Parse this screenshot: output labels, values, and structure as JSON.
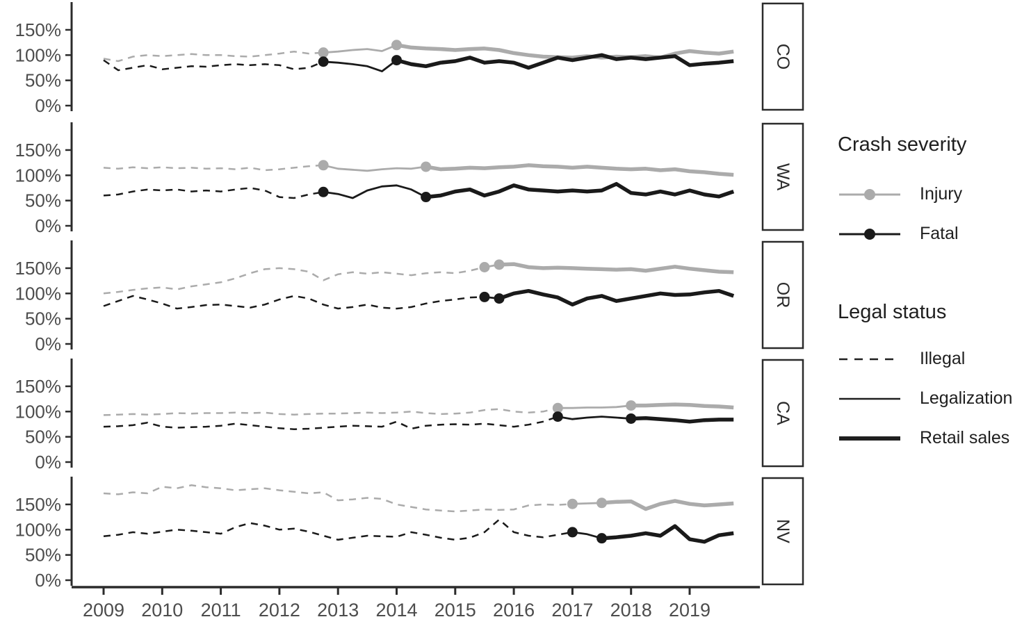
{
  "figure": {
    "background": "#ffffff"
  },
  "legend": {
    "crash_severity": {
      "title": "Crash severity",
      "items": [
        {
          "label": "Injury",
          "color": "#ABABAB",
          "marker": "line-with-dot"
        },
        {
          "label": "Fatal",
          "color": "#1A1A1A",
          "marker": "line-with-dot"
        }
      ]
    },
    "legal_status": {
      "title": "Legal status",
      "items": [
        {
          "label": "Illegal",
          "style": "dashed"
        },
        {
          "label": "Legalization",
          "style": "solid-thin"
        },
        {
          "label": "Retail sales",
          "style": "solid-thick"
        }
      ]
    }
  },
  "chart_data": {
    "type": "line",
    "title": "",
    "xlabel": "",
    "ylabel": "",
    "x_unit": "year, quarterly observations",
    "x_start": 2009,
    "x_step": 0.25,
    "x_ticks": [
      2009,
      2010,
      2011,
      2012,
      2013,
      2014,
      2015,
      2016,
      2017,
      2018,
      2019
    ],
    "x_tick_labels": [
      "2009",
      "2010",
      "2011",
      "2012",
      "2013",
      "2014",
      "2015",
      "2016",
      "2017",
      "2018",
      "2019"
    ],
    "y_tick_values": [
      0,
      50,
      100,
      150
    ],
    "y_tick_labels": [
      "0%",
      "50%",
      "100%",
      "150%"
    ],
    "ylim": [
      -12,
      206
    ],
    "xlim": [
      2008.45,
      2020.2
    ],
    "grid": false,
    "legend_position": "right",
    "series_colors": {
      "injury": "#ABABAB",
      "fatal": "#1A1A1A"
    },
    "axis_color": "#2b2b2b",
    "tick_label_color": "#4d4d4d",
    "panels": [
      {
        "label": "CO",
        "transitions": {
          "legalization": 2012.75,
          "retail_sales": 2014.0
        },
        "injury": [
          93,
          88,
          97,
          100,
          98,
          100,
          102,
          100,
          100,
          98,
          97,
          100,
          103,
          107,
          103,
          105,
          107,
          110,
          112,
          108,
          120,
          115,
          113,
          112,
          110,
          112,
          113,
          110,
          104,
          100,
          97,
          96,
          95,
          98,
          95,
          97,
          96,
          98,
          95,
          103,
          108,
          105,
          103,
          107
        ],
        "fatal": [
          90,
          70,
          75,
          80,
          72,
          75,
          78,
          77,
          80,
          82,
          80,
          82,
          80,
          72,
          75,
          87,
          85,
          82,
          78,
          68,
          90,
          82,
          78,
          85,
          88,
          95,
          85,
          88,
          85,
          75,
          85,
          95,
          90,
          95,
          100,
          92,
          95,
          92,
          95,
          98,
          80,
          83,
          85,
          88
        ]
      },
      {
        "label": "WA",
        "transitions": {
          "legalization": 2012.75,
          "retail_sales": 2014.5
        },
        "injury": [
          115,
          113,
          116,
          114,
          116,
          114,
          115,
          113,
          114,
          112,
          115,
          110,
          112,
          115,
          118,
          120,
          113,
          111,
          109,
          112,
          114,
          113,
          117,
          112,
          113,
          115,
          114,
          116,
          117,
          120,
          118,
          117,
          115,
          117,
          115,
          113,
          112,
          113,
          110,
          112,
          108,
          106,
          103,
          101
        ],
        "fatal": [
          60,
          62,
          68,
          72,
          70,
          72,
          68,
          70,
          68,
          72,
          75,
          70,
          57,
          55,
          62,
          67,
          63,
          55,
          70,
          78,
          80,
          72,
          57,
          60,
          68,
          72,
          60,
          68,
          80,
          72,
          70,
          68,
          70,
          68,
          70,
          83,
          65,
          62,
          68,
          62,
          70,
          62,
          58,
          68
        ]
      },
      {
        "label": "OR",
        "transitions": {
          "legalization": 2015.5,
          "retail_sales": 2015.75
        },
        "injury": [
          100,
          103,
          107,
          110,
          112,
          108,
          114,
          118,
          122,
          130,
          140,
          148,
          150,
          148,
          143,
          126,
          138,
          142,
          139,
          142,
          139,
          136,
          140,
          142,
          140,
          145,
          152,
          157,
          158,
          152,
          150,
          151,
          150,
          149,
          148,
          147,
          148,
          145,
          149,
          153,
          149,
          146,
          143,
          142
        ],
        "fatal": [
          75,
          85,
          95,
          88,
          80,
          70,
          73,
          77,
          78,
          75,
          72,
          78,
          88,
          95,
          90,
          78,
          70,
          73,
          78,
          72,
          70,
          73,
          80,
          85,
          88,
          92,
          93,
          90,
          100,
          105,
          98,
          92,
          78,
          90,
          95,
          85,
          90,
          95,
          100,
          97,
          98,
          102,
          105,
          95
        ]
      },
      {
        "label": "CA",
        "transitions": {
          "legalization": 2016.75,
          "retail_sales": 2018.0
        },
        "injury": [
          93,
          94,
          95,
          94,
          95,
          97,
          96,
          97,
          97,
          98,
          97,
          98,
          95,
          94,
          95,
          96,
          96,
          97,
          98,
          97,
          98,
          100,
          97,
          95,
          96,
          98,
          103,
          105,
          100,
          98,
          100,
          107,
          107,
          108,
          108,
          109,
          112,
          112,
          113,
          114,
          113,
          111,
          110,
          108
        ],
        "fatal": [
          70,
          71,
          73,
          78,
          70,
          68,
          69,
          70,
          72,
          76,
          73,
          70,
          67,
          65,
          66,
          68,
          70,
          72,
          71,
          70,
          80,
          66,
          72,
          74,
          75,
          74,
          76,
          73,
          70,
          74,
          80,
          90,
          85,
          88,
          90,
          88,
          86,
          87,
          85,
          83,
          80,
          83,
          84,
          84
        ]
      },
      {
        "label": "NV",
        "transitions": {
          "legalization": 2017.0,
          "retail_sales": 2017.5
        },
        "injury": [
          172,
          170,
          174,
          172,
          185,
          182,
          188,
          184,
          182,
          178,
          180,
          182,
          178,
          175,
          172,
          174,
          158,
          160,
          163,
          161,
          150,
          145,
          140,
          138,
          136,
          138,
          140,
          139,
          140,
          148,
          150,
          149,
          151,
          152,
          153,
          155,
          156,
          141,
          151,
          157,
          151,
          148,
          150,
          152
        ],
        "fatal": [
          87,
          90,
          95,
          92,
          96,
          100,
          98,
          95,
          92,
          105,
          113,
          108,
          100,
          102,
          96,
          88,
          80,
          84,
          88,
          87,
          86,
          95,
          90,
          84,
          80,
          84,
          95,
          120,
          95,
          88,
          85,
          90,
          95,
          91,
          83,
          85,
          88,
          93,
          88,
          107,
          81,
          76,
          89,
          93
        ]
      }
    ]
  }
}
